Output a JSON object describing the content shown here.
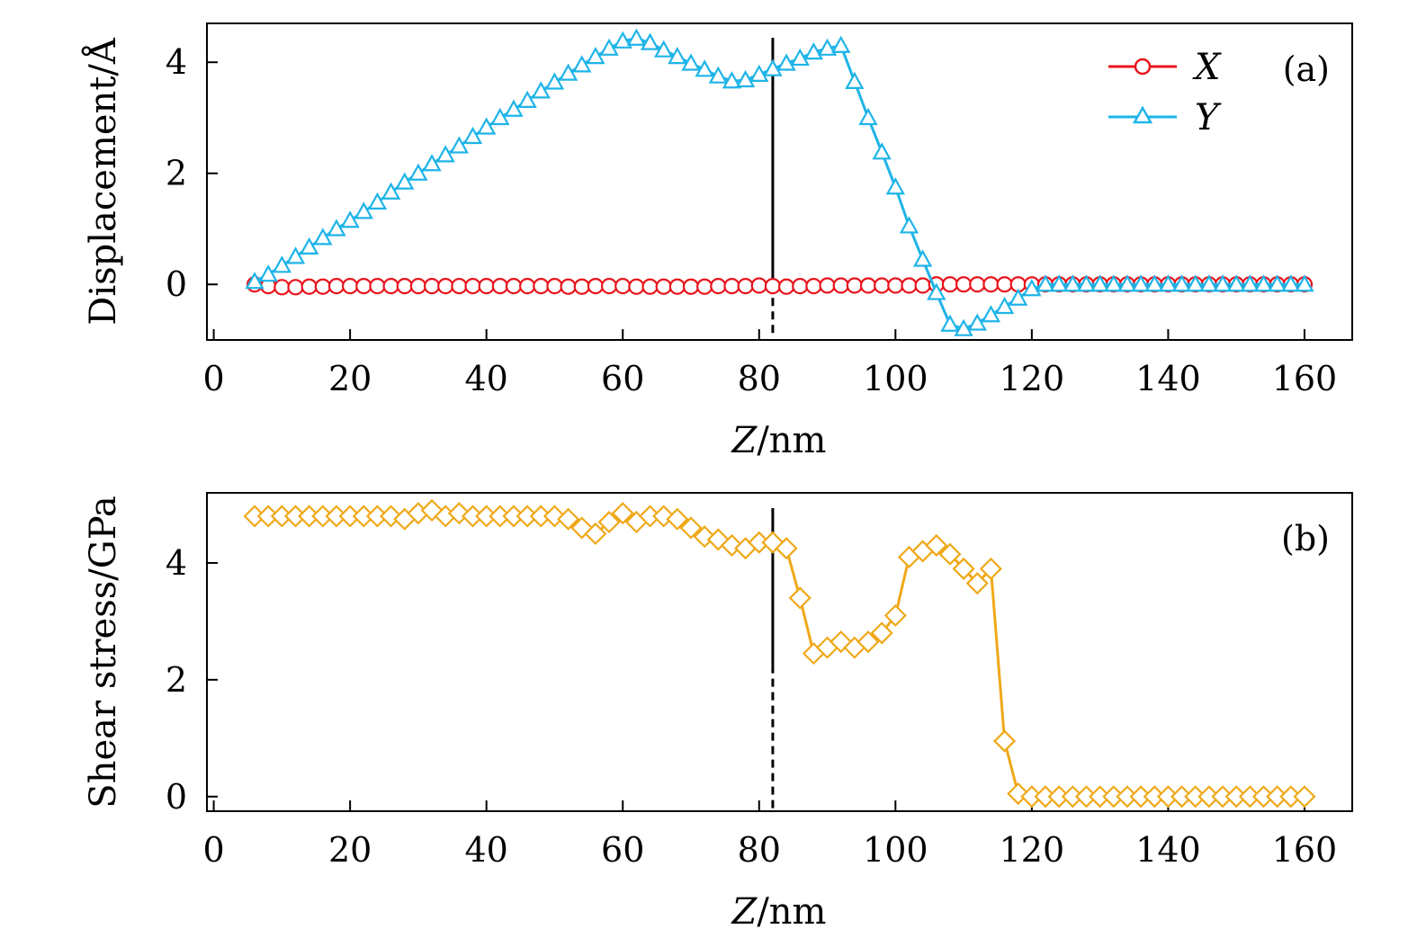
{
  "chart_data": [
    {
      "type": "line",
      "panel_label": "(a)",
      "xlabel_var": "Z",
      "xlabel_unit": "/nm",
      "ylabel": "Displacement/Å",
      "xlim": [
        -1,
        167
      ],
      "ylim": [
        -1,
        4.7
      ],
      "xticks": [
        0,
        20,
        40,
        60,
        80,
        100,
        120,
        140,
        160
      ],
      "yticks": [
        0,
        2,
        4
      ],
      "legend_position": "top-right",
      "vline": {
        "x": 82,
        "style": "solid-above-dashed-below",
        "switch_y": 0
      },
      "series": [
        {
          "name": "X",
          "color": "#e8141c",
          "marker": "circle",
          "x": [
            6,
            8,
            10,
            12,
            14,
            16,
            18,
            20,
            22,
            24,
            26,
            28,
            30,
            32,
            34,
            36,
            38,
            40,
            42,
            44,
            46,
            48,
            50,
            52,
            54,
            56,
            58,
            60,
            62,
            64,
            66,
            68,
            70,
            72,
            74,
            76,
            78,
            80,
            82,
            84,
            86,
            88,
            90,
            92,
            94,
            96,
            98,
            100,
            102,
            104,
            106,
            108,
            110,
            112,
            114,
            116,
            118,
            120,
            122,
            124,
            126,
            128,
            130,
            132,
            134,
            136,
            138,
            140,
            142,
            144,
            146,
            148,
            150,
            152,
            154,
            156,
            158,
            160
          ],
          "y": [
            0,
            -0.03,
            -0.05,
            -0.05,
            -0.04,
            -0.04,
            -0.03,
            -0.03,
            -0.03,
            -0.03,
            -0.03,
            -0.03,
            -0.03,
            -0.03,
            -0.03,
            -0.03,
            -0.03,
            -0.03,
            -0.03,
            -0.03,
            -0.03,
            -0.03,
            -0.03,
            -0.04,
            -0.04,
            -0.03,
            -0.03,
            -0.03,
            -0.04,
            -0.04,
            -0.04,
            -0.04,
            -0.04,
            -0.04,
            -0.03,
            -0.03,
            -0.03,
            -0.02,
            -0.03,
            -0.04,
            -0.03,
            -0.03,
            -0.02,
            -0.02,
            -0.02,
            -0.02,
            -0.02,
            -0.02,
            -0.02,
            -0.02,
            0,
            0,
            0,
            0,
            0,
            0,
            0,
            0,
            0,
            0,
            0,
            0,
            0,
            0,
            0,
            0,
            0,
            0,
            0,
            0,
            0,
            0,
            0,
            0,
            0,
            0,
            0,
            0
          ]
        },
        {
          "name": "Y",
          "color": "#1eb4e8",
          "marker": "triangle",
          "x": [
            6,
            8,
            10,
            12,
            14,
            16,
            18,
            20,
            22,
            24,
            26,
            28,
            30,
            32,
            34,
            36,
            38,
            40,
            42,
            44,
            46,
            48,
            50,
            52,
            54,
            56,
            58,
            60,
            62,
            64,
            66,
            68,
            70,
            72,
            74,
            76,
            78,
            80,
            82,
            84,
            86,
            88,
            90,
            92,
            94,
            96,
            98,
            100,
            102,
            104,
            106,
            108,
            110,
            112,
            114,
            116,
            118,
            120,
            122,
            124,
            126,
            128,
            130,
            132,
            134,
            136,
            138,
            140,
            142,
            144,
            146,
            148,
            150,
            152,
            154,
            156,
            158,
            160
          ],
          "y": [
            0.05,
            0.18,
            0.34,
            0.5,
            0.67,
            0.84,
            1.0,
            1.15,
            1.31,
            1.48,
            1.66,
            1.84,
            2.0,
            2.17,
            2.33,
            2.49,
            2.66,
            2.83,
            3.0,
            3.15,
            3.31,
            3.48,
            3.64,
            3.8,
            3.95,
            4.1,
            4.25,
            4.38,
            4.43,
            4.35,
            4.22,
            4.1,
            3.98,
            3.87,
            3.75,
            3.66,
            3.68,
            3.78,
            3.88,
            3.98,
            4.07,
            4.18,
            4.25,
            4.3,
            3.65,
            3.0,
            2.38,
            1.75,
            1.05,
            0.45,
            -0.15,
            -0.72,
            -0.8,
            -0.7,
            -0.55,
            -0.4,
            -0.25,
            -0.08,
            0,
            0,
            0,
            0,
            0,
            0,
            0,
            0,
            0,
            0,
            0,
            0,
            0,
            0,
            0,
            0,
            0,
            0,
            0,
            0
          ]
        }
      ]
    },
    {
      "type": "line",
      "panel_label": "(b)",
      "xlabel_var": "Z",
      "xlabel_unit": "/nm",
      "ylabel": "Shear stress/GPa",
      "xlim": [
        -1,
        167
      ],
      "ylim": [
        -0.25,
        5.2
      ],
      "xticks": [
        0,
        20,
        40,
        60,
        80,
        100,
        120,
        140,
        160
      ],
      "yticks": [
        0,
        2,
        4
      ],
      "vline": {
        "x": 82,
        "style": "solid-above-dashed-below",
        "switch_y": 2.25
      },
      "series": [
        {
          "name": "Shear stress",
          "color": "#f0a818",
          "marker": "diamond",
          "x": [
            6,
            8,
            10,
            12,
            14,
            16,
            18,
            20,
            22,
            24,
            26,
            28,
            30,
            32,
            34,
            36,
            38,
            40,
            42,
            44,
            46,
            48,
            50,
            52,
            54,
            56,
            58,
            60,
            62,
            64,
            66,
            68,
            70,
            72,
            74,
            76,
            78,
            80,
            82,
            84,
            86,
            88,
            90,
            92,
            94,
            96,
            98,
            100,
            102,
            104,
            106,
            108,
            110,
            112,
            114,
            116,
            118,
            120,
            122,
            124,
            126,
            128,
            130,
            132,
            134,
            136,
            138,
            140,
            142,
            144,
            146,
            148,
            150,
            152,
            154,
            156,
            158,
            160
          ],
          "y": [
            4.8,
            4.8,
            4.8,
            4.8,
            4.8,
            4.8,
            4.8,
            4.8,
            4.8,
            4.8,
            4.8,
            4.75,
            4.85,
            4.9,
            4.8,
            4.85,
            4.8,
            4.8,
            4.8,
            4.8,
            4.8,
            4.8,
            4.8,
            4.75,
            4.6,
            4.5,
            4.7,
            4.85,
            4.7,
            4.8,
            4.8,
            4.75,
            4.6,
            4.45,
            4.4,
            4.3,
            4.25,
            4.35,
            4.35,
            4.25,
            3.4,
            2.45,
            2.55,
            2.65,
            2.55,
            2.65,
            2.8,
            3.1,
            4.1,
            4.2,
            4.3,
            4.15,
            3.9,
            3.65,
            3.9,
            0.95,
            0.05,
            0,
            0,
            0,
            0,
            0,
            0,
            0,
            0,
            0,
            0,
            0,
            0,
            0,
            0,
            0,
            0,
            0,
            0,
            0,
            0,
            0
          ]
        }
      ]
    }
  ]
}
